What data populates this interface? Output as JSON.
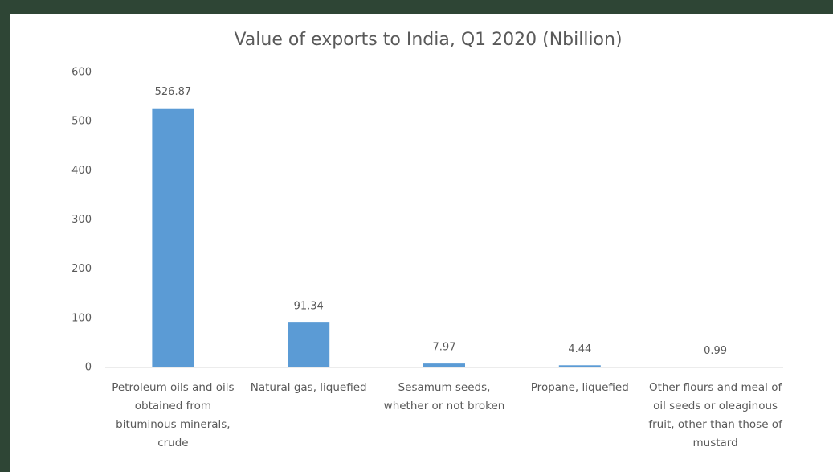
{
  "chart_data": {
    "type": "bar",
    "title": "Value of exports to India, Q1 2020 (Nbillion)",
    "categories": [
      "Petroleum oils and oils obtained from bituminous minerals, crude",
      "Natural gas, liquefied",
      "Sesamum seeds, whether or not broken",
      "Propane, liquefied",
      "Other flours and meal of oil seeds or oleaginous fruit, other than those of mustard"
    ],
    "values": [
      526.87,
      91.34,
      7.97,
      4.44,
      0.99
    ],
    "color": "#5b9bd5",
    "ylim": [
      0,
      600
    ],
    "yticks": [
      0,
      100,
      200,
      300,
      400,
      500,
      600
    ],
    "grid": false
  }
}
